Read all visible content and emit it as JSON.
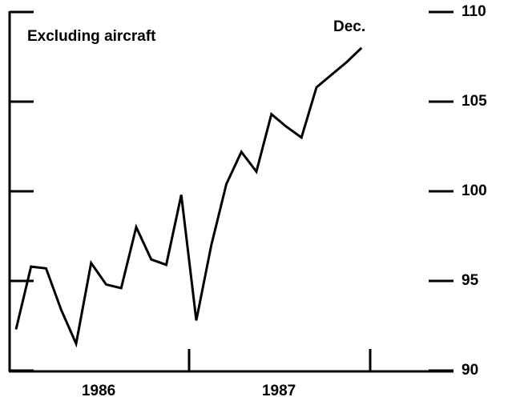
{
  "chart_data": {
    "type": "line",
    "title": "Excluding aircraft",
    "annotation": "Dec.",
    "categories": [
      null,
      null,
      null,
      null,
      null,
      null,
      null,
      null,
      null,
      null,
      null,
      null,
      null,
      null,
      null,
      null,
      null,
      null,
      null,
      null,
      null,
      null,
      null,
      null
    ],
    "groups": [
      "1986",
      "1987"
    ],
    "series": [
      {
        "name": null,
        "color": "#000000",
        "values": [
          92.3,
          95.8,
          95.7,
          93.4,
          91.5,
          96.0,
          94.8,
          94.6,
          98.0,
          96.2,
          95.9,
          99.8,
          92.8,
          97.0,
          100.4,
          102.2,
          101.1,
          104.3,
          103.6,
          103.0,
          105.8,
          106.5,
          107.2,
          108.0
        ]
      }
    ],
    "ylim": [
      90,
      110
    ],
    "yticks": [
      90,
      95,
      100,
      105,
      110
    ]
  }
}
